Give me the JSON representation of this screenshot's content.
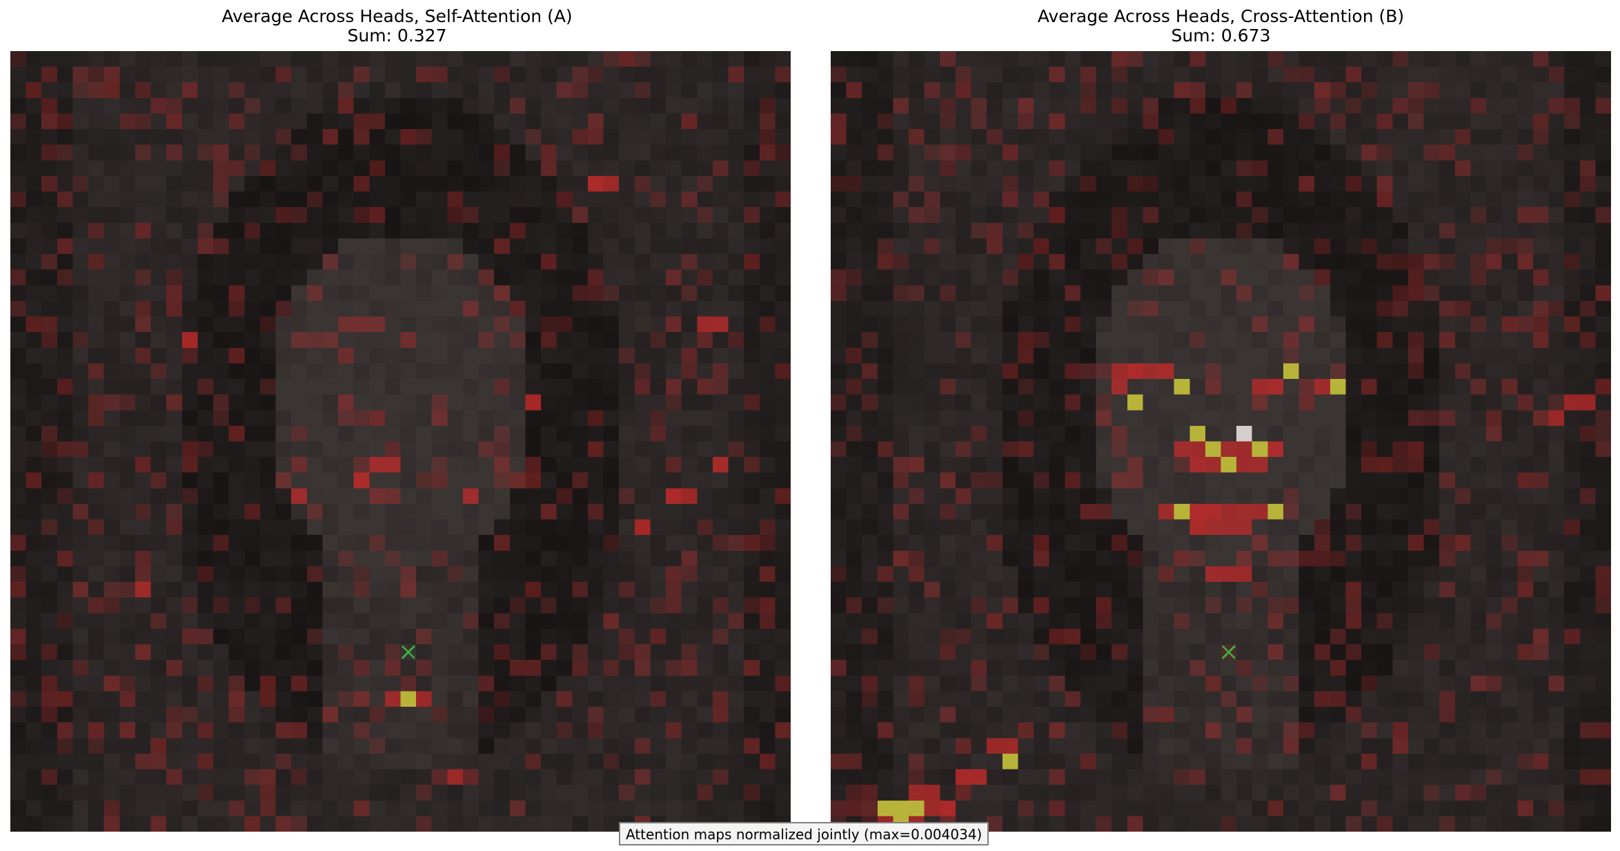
{
  "panels": [
    {
      "title": "Average Across Heads, Self-Attention (A)",
      "sum_label": "Sum: 0.327",
      "query_marker": "green-x-marker",
      "overlay_color": "#c62a2a",
      "peak_color": "#b8b43a",
      "seed": 17,
      "query_cell": [
        25,
        38
      ],
      "hot_cells": [
        [
          18,
          28
        ],
        [
          23,
          26
        ],
        [
          24,
          26
        ],
        [
          22,
          27
        ],
        [
          25,
          41
        ],
        [
          26,
          41
        ],
        [
          24,
          41
        ],
        [
          8,
          34
        ],
        [
          44,
          17
        ],
        [
          45,
          17
        ],
        [
          42,
          28
        ],
        [
          43,
          28
        ],
        [
          45,
          26
        ],
        [
          11,
          18
        ],
        [
          5,
          52
        ],
        [
          37,
          8
        ],
        [
          38,
          8
        ],
        [
          29,
          28
        ],
        [
          33,
          22
        ],
        [
          40,
          30
        ],
        [
          28,
          46
        ]
      ],
      "peak_cells": [
        [
          25,
          41
        ]
      ]
    },
    {
      "title": "Average Across Heads, Cross-Attention (B)",
      "sum_label": "Sum: 0.673",
      "query_marker": "green-x-marker",
      "overlay_color": "#c62a2a",
      "peak_color": "#b8b43a",
      "seed": 91,
      "query_cell": [
        25,
        38
      ],
      "hot_cells": [
        [
          18,
          20
        ],
        [
          19,
          20
        ],
        [
          20,
          20
        ],
        [
          21,
          20
        ],
        [
          18,
          21
        ],
        [
          22,
          21
        ],
        [
          27,
          21
        ],
        [
          28,
          21
        ],
        [
          31,
          21
        ],
        [
          32,
          21
        ],
        [
          22,
          25
        ],
        [
          23,
          25
        ],
        [
          24,
          25
        ],
        [
          25,
          25
        ],
        [
          26,
          25
        ],
        [
          27,
          25
        ],
        [
          28,
          25
        ],
        [
          23,
          26
        ],
        [
          24,
          26
        ],
        [
          25,
          26
        ],
        [
          26,
          26
        ],
        [
          27,
          26
        ],
        [
          21,
          29
        ],
        [
          22,
          29
        ],
        [
          23,
          29
        ],
        [
          24,
          29
        ],
        [
          25,
          29
        ],
        [
          26,
          29
        ],
        [
          27,
          29
        ],
        [
          28,
          29
        ],
        [
          23,
          30
        ],
        [
          24,
          30
        ],
        [
          25,
          30
        ],
        [
          26,
          30
        ],
        [
          10,
          44
        ],
        [
          11,
          44
        ],
        [
          8,
          46
        ],
        [
          9,
          46
        ],
        [
          5,
          47
        ],
        [
          6,
          47
        ],
        [
          4,
          48
        ],
        [
          5,
          48
        ],
        [
          6,
          48
        ],
        [
          7,
          48
        ],
        [
          3,
          49
        ],
        [
          4,
          49
        ],
        [
          5,
          49
        ],
        [
          47,
          22
        ],
        [
          48,
          22
        ],
        [
          46,
          23
        ],
        [
          24,
          33
        ],
        [
          25,
          33
        ],
        [
          26,
          33
        ]
      ],
      "peak_cells": [
        [
          22,
          21
        ],
        [
          19,
          22
        ],
        [
          27,
          25
        ],
        [
          29,
          20
        ],
        [
          32,
          21
        ],
        [
          23,
          24
        ],
        [
          24,
          25
        ],
        [
          25,
          26
        ],
        [
          22,
          29
        ],
        [
          28,
          29
        ],
        [
          26,
          24
        ],
        [
          11,
          45
        ],
        [
          3,
          48
        ],
        [
          4,
          48
        ],
        [
          5,
          48
        ],
        [
          4,
          49
        ]
      ],
      "white_cells": [
        [
          26,
          24
        ]
      ]
    }
  ],
  "footnote": "Attention maps normalized jointly (max=0.004034)",
  "grid_size": 50,
  "colors": {
    "background_dark": "#1b1716",
    "face_tone": "#3a3433",
    "hair_tone": "#161212",
    "marker": "#3fb23f"
  }
}
